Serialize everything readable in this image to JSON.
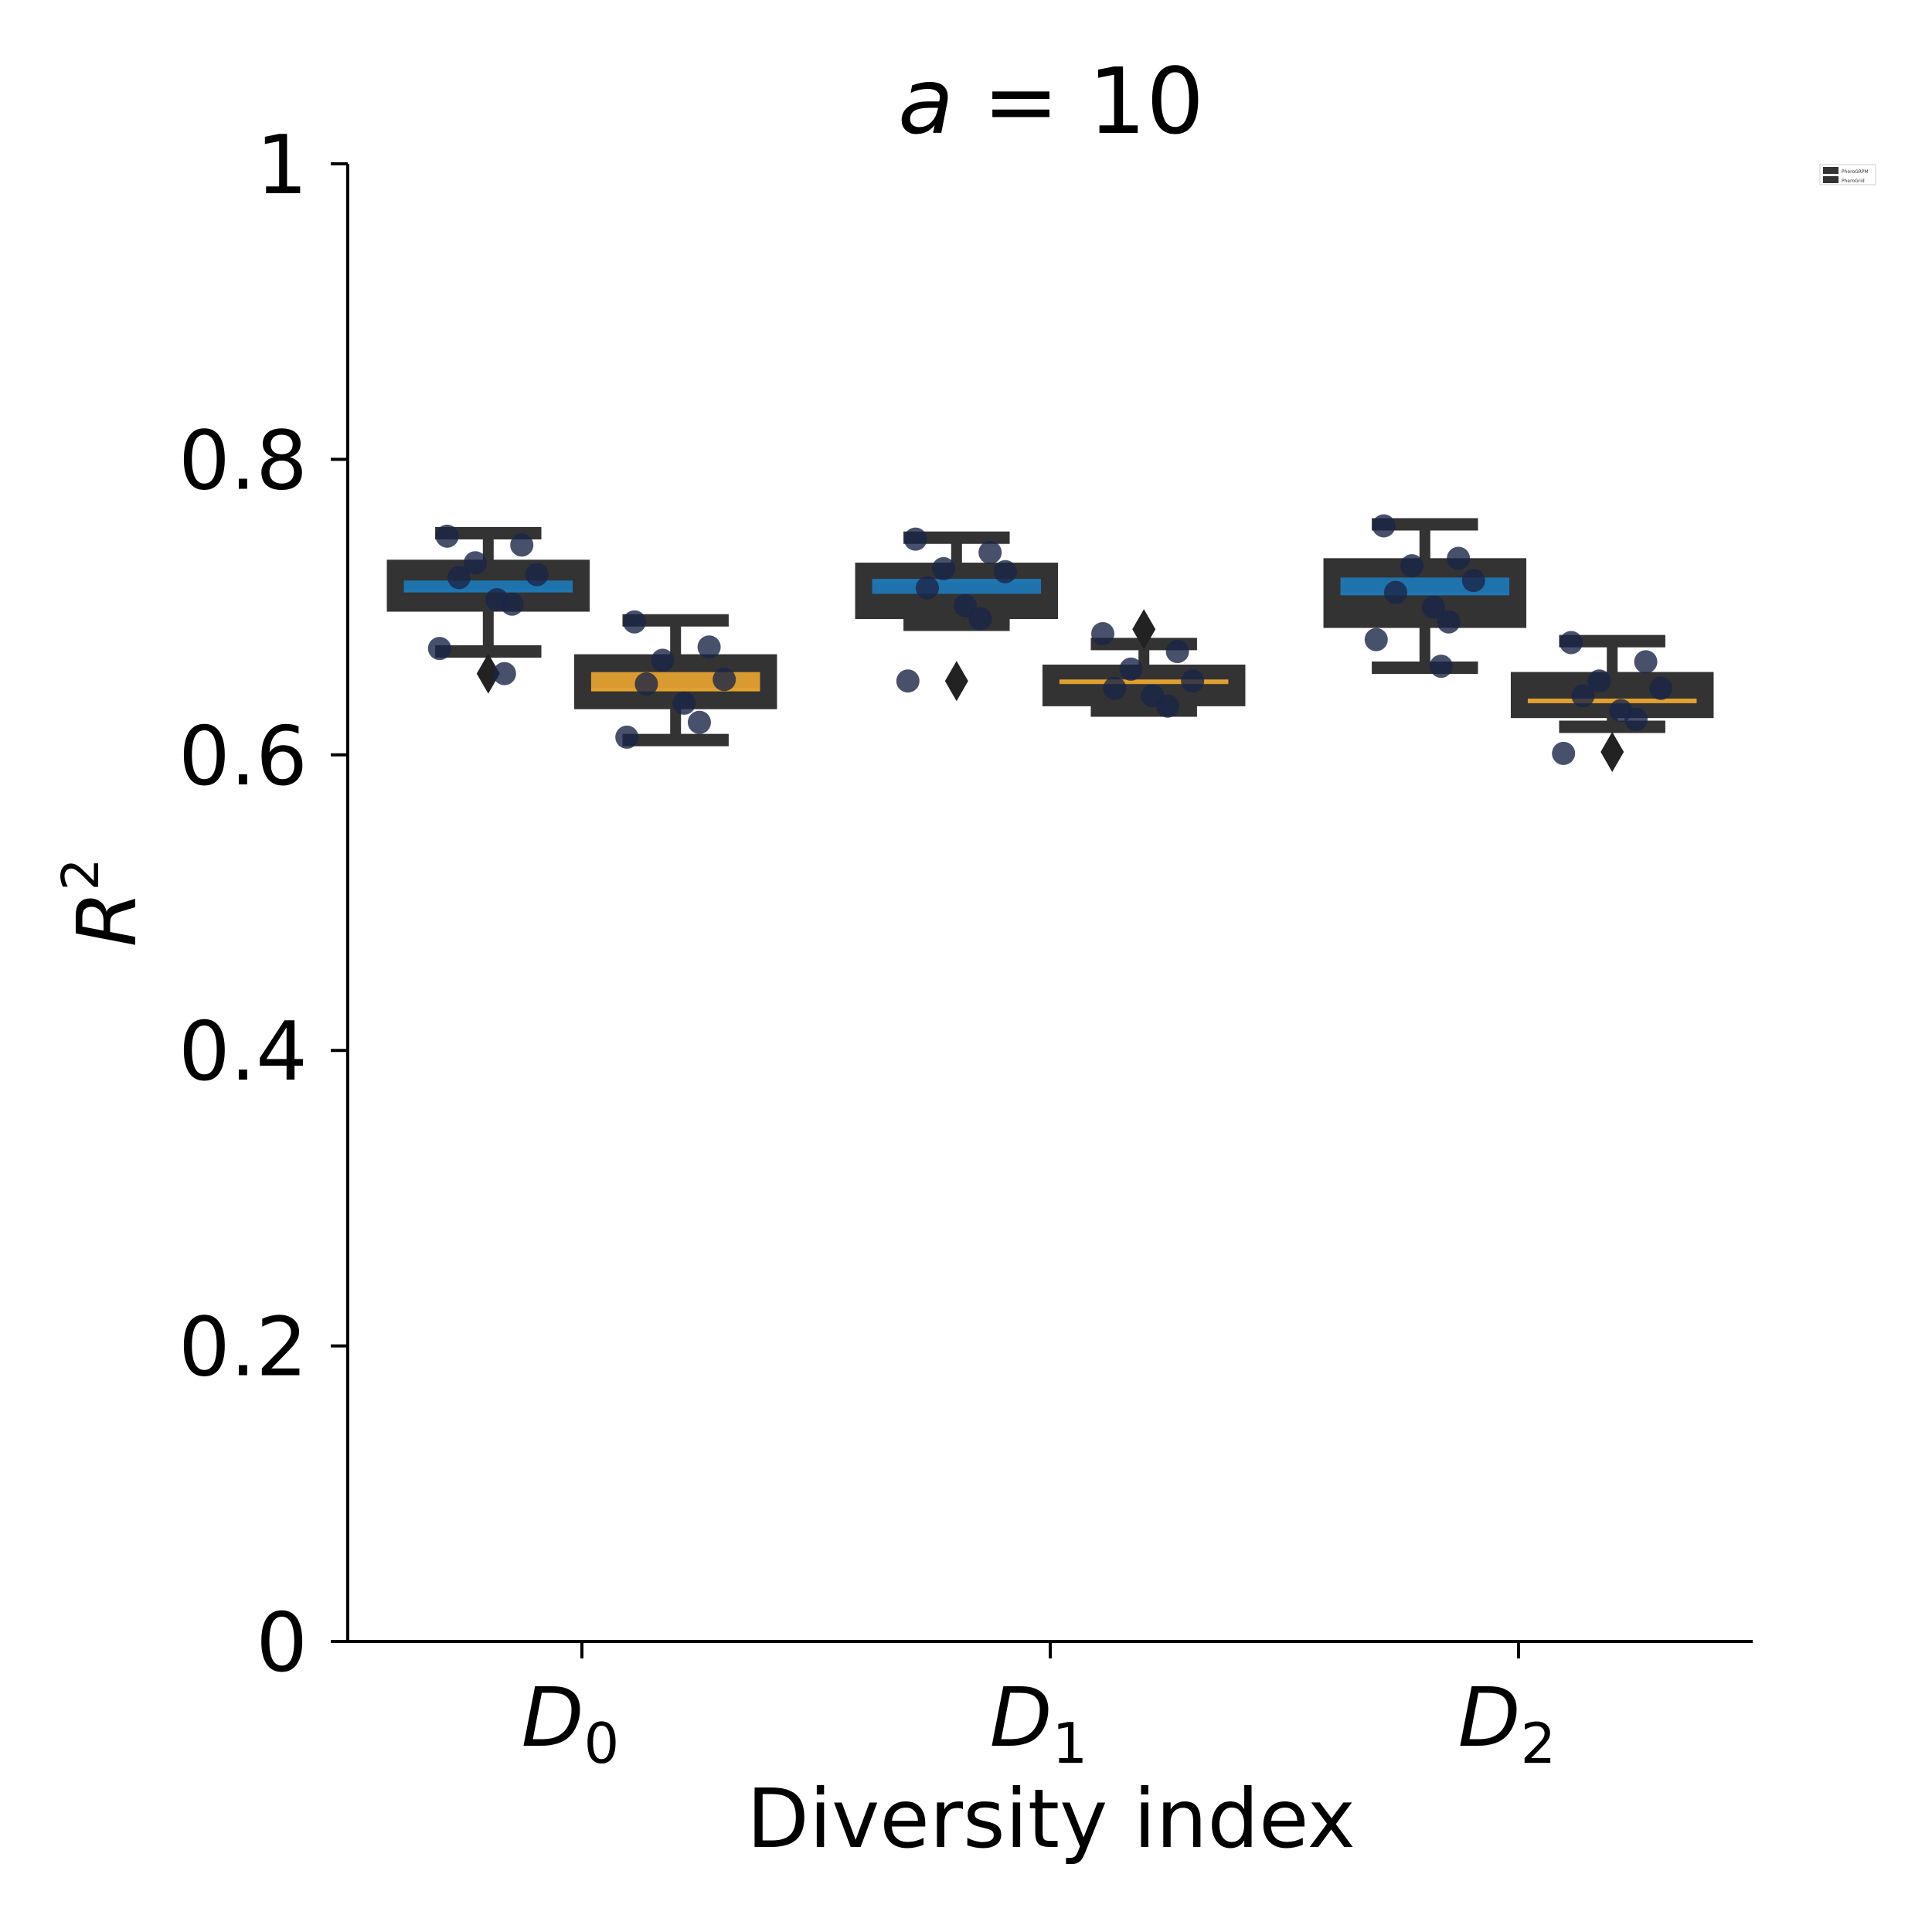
{
  "chart_data": {
    "type": "box",
    "title": "a = 10",
    "title_parts": {
      "var": "a",
      "op": " = ",
      "value": "10"
    },
    "xlabel": "Diversity index",
    "ylabel": {
      "base": "R",
      "sup": "2"
    },
    "categories": [
      {
        "base": "D",
        "sub": "0"
      },
      {
        "base": "D",
        "sub": "1"
      },
      {
        "base": "D",
        "sub": "2"
      }
    ],
    "ylim": [
      0,
      1
    ],
    "yticks": [
      0,
      0.2,
      0.4,
      0.6,
      0.8,
      1
    ],
    "ytick_labels": [
      "0",
      "0.2",
      "0.4",
      "0.6",
      "0.8",
      "1"
    ],
    "legend": {
      "placement": "top-right, outside plot",
      "entries": [
        "PheroGRPM",
        "PheroGrid"
      ]
    },
    "colors": {
      "box_fill": "#333333",
      "series_a": "#1f77b4",
      "series_b": "#e3a12f",
      "points": "#1a2547",
      "axis": "#000000"
    },
    "series": [
      {
        "name": "PheroGRPM",
        "boxes": [
          {
            "q1": 0.699,
            "median": 0.711,
            "q3": 0.73,
            "mean": 0.718,
            "whislo": 0.67,
            "whishi": 0.75,
            "fliers": [
              0.655
            ],
            "points": [
              0.748,
              0.742,
              0.73,
              0.722,
              0.72,
              0.705,
              0.702,
              0.672,
              0.655
            ]
          },
          {
            "q1": 0.694,
            "median": 0.718,
            "q3": 0.728,
            "mean": 0.709,
            "whislo": 0.688,
            "whishi": 0.747,
            "fliers": [
              0.65
            ],
            "points": [
              0.746,
              0.737,
              0.726,
              0.724,
              0.713,
              0.701,
              0.692,
              0.65
            ]
          },
          {
            "q1": 0.688,
            "median": 0.709,
            "q3": 0.731,
            "mean": 0.72,
            "whislo": 0.659,
            "whishi": 0.756,
            "fliers": [],
            "points": [
              0.755,
              0.733,
              0.728,
              0.718,
              0.71,
              0.7,
              0.69,
              0.678,
              0.66
            ]
          }
        ]
      },
      {
        "name": "PheroGrid",
        "boxes": [
          {
            "q1": 0.633,
            "median": 0.644,
            "q3": 0.666,
            "mean": 0.656,
            "whislo": 0.61,
            "whishi": 0.691,
            "fliers": [],
            "points": [
              0.69,
              0.673,
              0.664,
              0.651,
              0.648,
              0.635,
              0.622,
              0.612
            ]
          },
          {
            "q1": 0.635,
            "median": 0.65,
            "q3": 0.659,
            "mean": 0.65,
            "whislo": 0.63,
            "whishi": 0.675,
            "fliers": [
              0.685
            ],
            "points": [
              0.682,
              0.67,
              0.658,
              0.65,
              0.645,
              0.64,
              0.633
            ]
          },
          {
            "q1": 0.627,
            "median": 0.637,
            "q3": 0.654,
            "mean": 0.637,
            "whislo": 0.619,
            "whishi": 0.677,
            "fliers": [
              0.602
            ],
            "points": [
              0.676,
              0.663,
              0.65,
              0.645,
              0.64,
              0.63,
              0.624,
              0.601
            ]
          }
        ]
      }
    ]
  }
}
